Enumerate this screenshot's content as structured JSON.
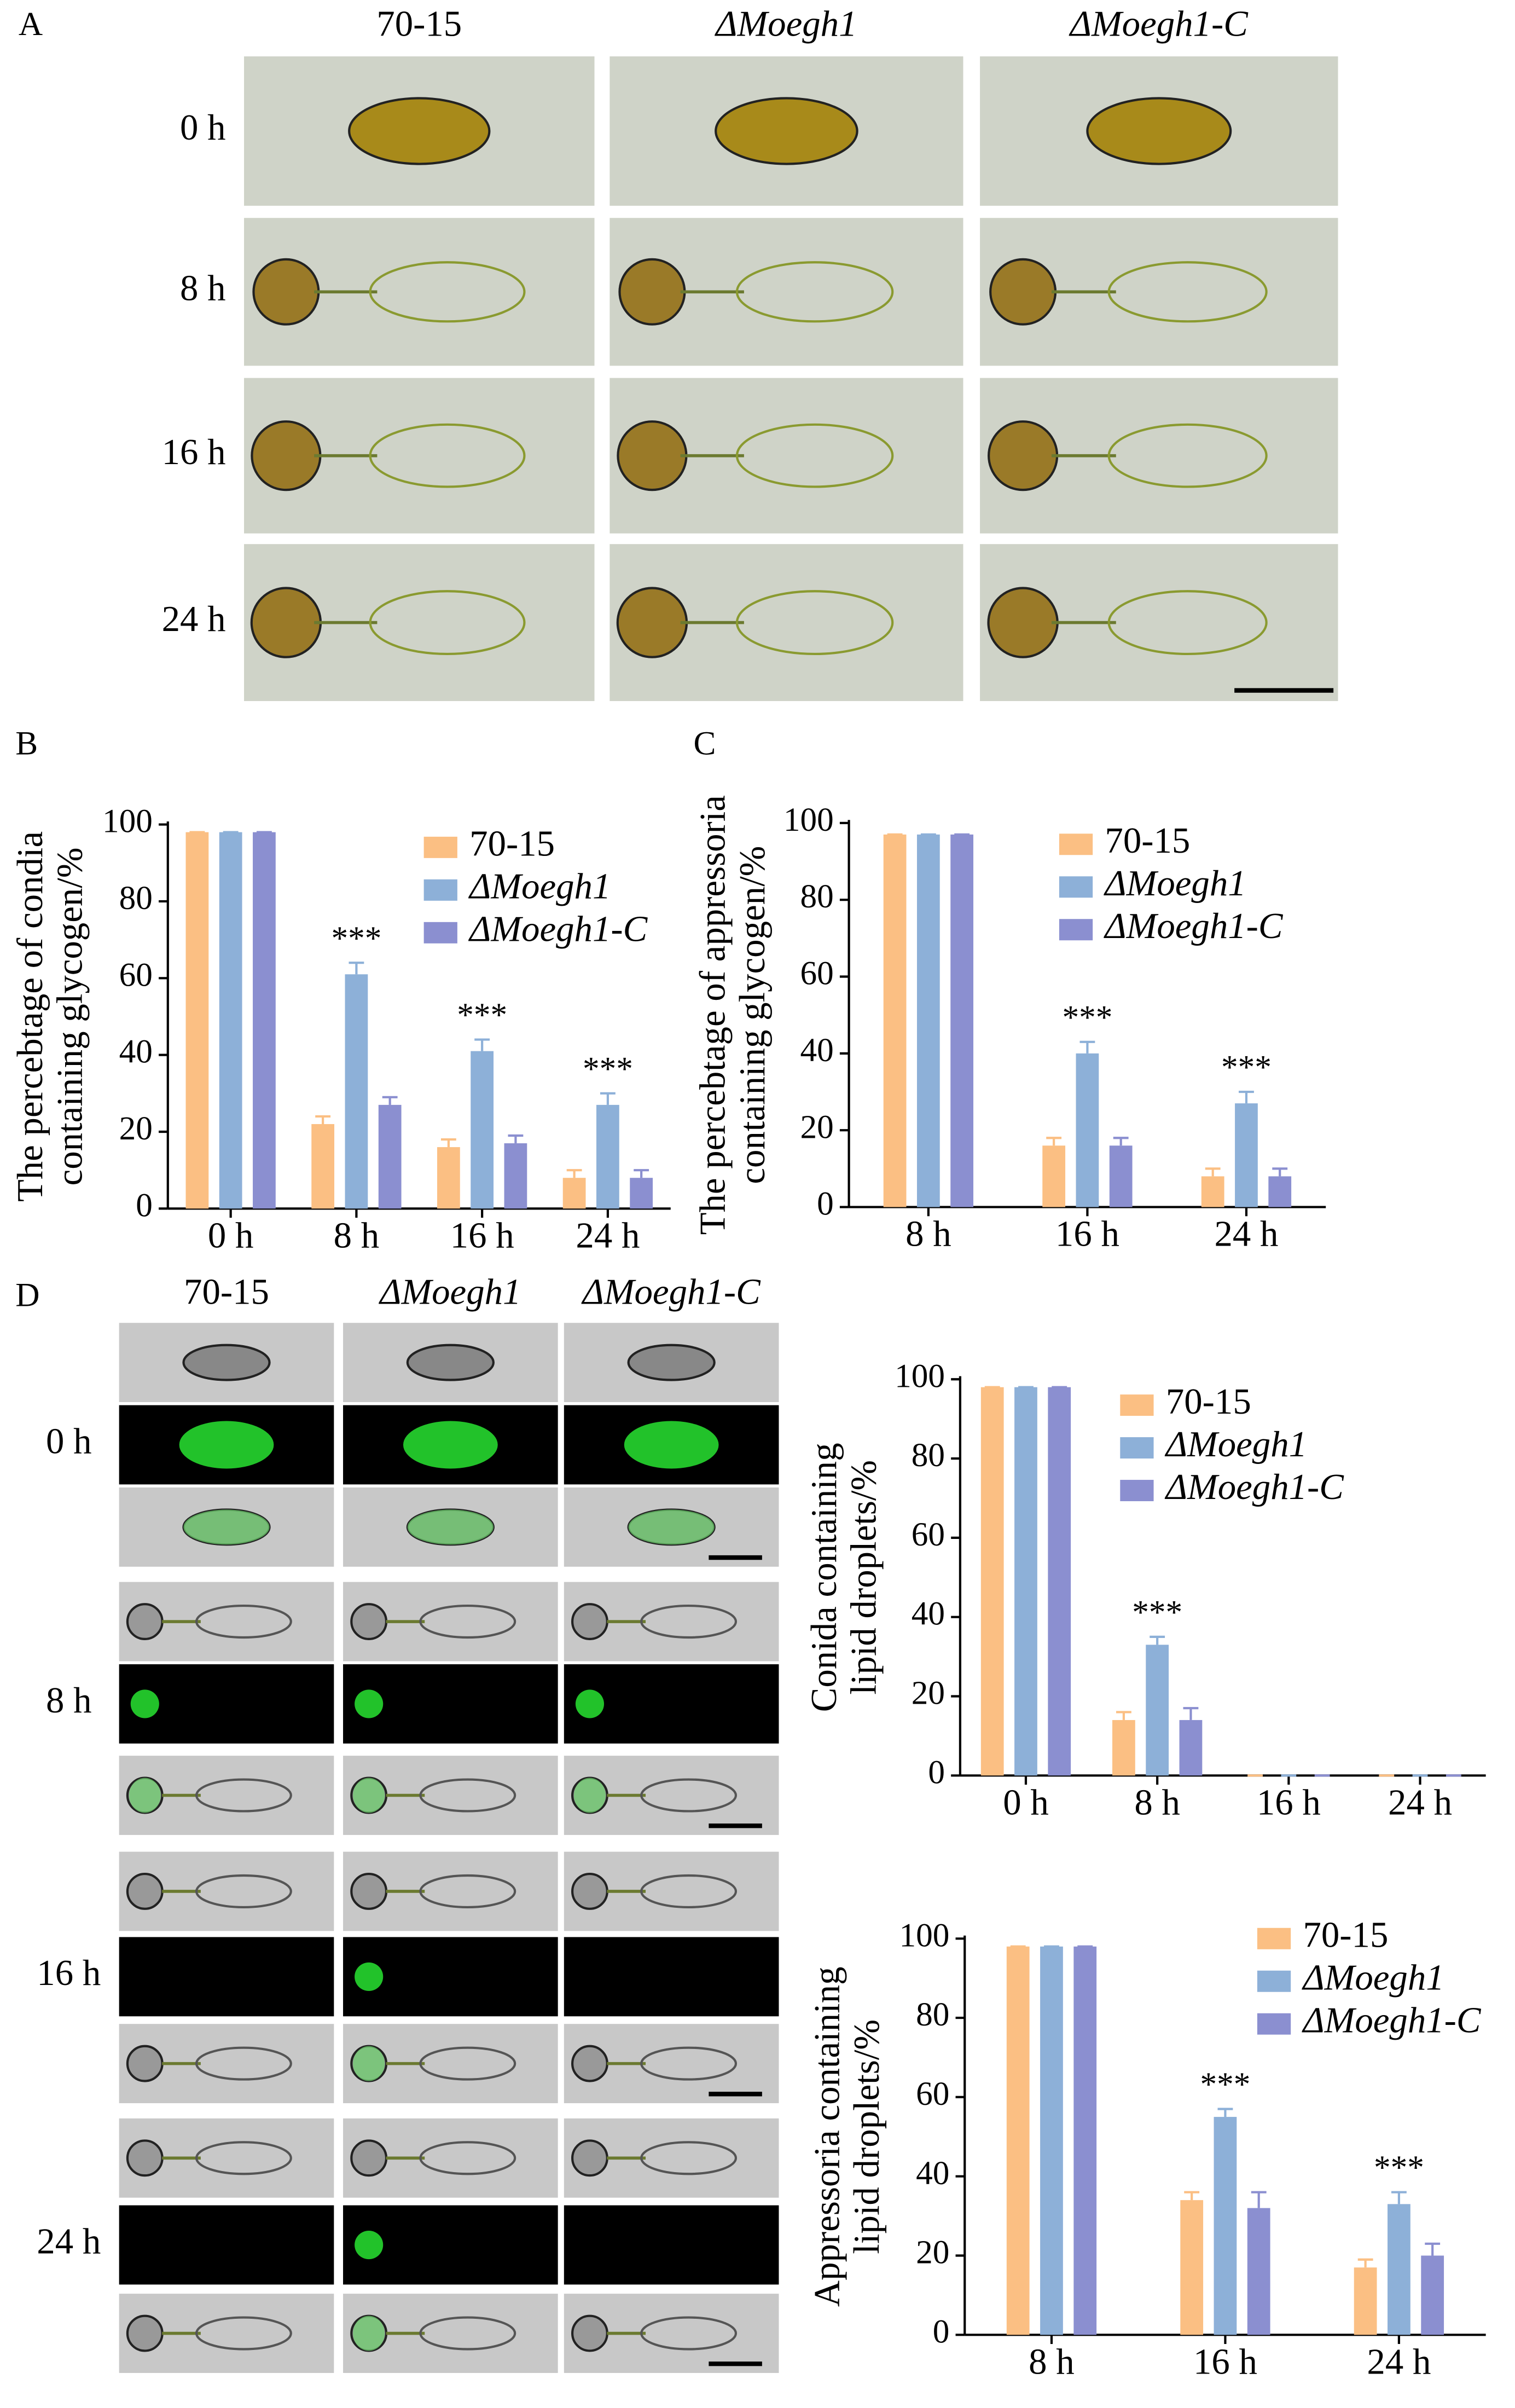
{
  "panel_a": {
    "label": "A",
    "columns": [
      "70-15",
      "ΔMoegh1",
      "ΔMoegh1-C"
    ],
    "rows": [
      "0 h",
      "8 h",
      "16 h",
      "24 h"
    ]
  },
  "panel_d": {
    "label": "D",
    "columns": [
      "70-15",
      "ΔMoegh1",
      "ΔMoegh1-C"
    ],
    "rows": [
      "0 h",
      "8 h",
      "16 h",
      "24 h"
    ]
  },
  "chart_data": [
    {
      "type": "bar",
      "label": "B",
      "ylabel": [
        "The percebtage of condia",
        "containing glycogen/%"
      ],
      "categories": [
        "0 h",
        "8 h",
        "16 h",
        "24 h"
      ],
      "series": [
        {
          "name": "70-15",
          "color": "#fbbf83",
          "values": [
            98,
            22,
            16,
            8
          ],
          "errors": [
            0,
            2,
            2,
            2
          ]
        },
        {
          "name": "ΔMoegh1",
          "color": "#8db0d8",
          "values": [
            98,
            61,
            41,
            27
          ],
          "errors": [
            0,
            3,
            3,
            3
          ]
        },
        {
          "name": "ΔMoegh1-C",
          "color": "#8b8fd0",
          "values": [
            98,
            27,
            17,
            8
          ],
          "errors": [
            0,
            2,
            2,
            2
          ]
        }
      ],
      "significance": [
        null,
        "***",
        "***",
        "***"
      ],
      "ylim": [
        0,
        100
      ],
      "yticks": [
        0,
        20,
        40,
        60,
        80,
        100
      ],
      "legend": "upper right"
    },
    {
      "type": "bar",
      "label": "C",
      "ylabel": [
        "The percebtage of appressoria",
        "containing glycogen/%"
      ],
      "categories": [
        "8 h",
        "16 h",
        "24 h"
      ],
      "series": [
        {
          "name": "70-15",
          "color": "#fbbf83",
          "values": [
            97,
            16,
            8
          ],
          "errors": [
            0,
            2,
            2
          ]
        },
        {
          "name": "ΔMoegh1",
          "color": "#8db0d8",
          "values": [
            97,
            40,
            27
          ],
          "errors": [
            0,
            3,
            3
          ]
        },
        {
          "name": "ΔMoegh1-C",
          "color": "#8b8fd0",
          "values": [
            97,
            16,
            8
          ],
          "errors": [
            0,
            2,
            2
          ]
        }
      ],
      "significance": [
        null,
        "***",
        "***"
      ],
      "ylim": [
        0,
        100
      ],
      "yticks": [
        0,
        20,
        40,
        60,
        80,
        100
      ],
      "legend": "upper right"
    },
    {
      "type": "bar",
      "ylabel": [
        "Conida containing",
        "lipid droplets/%"
      ],
      "categories": [
        "0 h",
        "8 h",
        "16 h",
        "24 h"
      ],
      "series": [
        {
          "name": "70-15",
          "color": "#fbbf83",
          "values": [
            98,
            14,
            0,
            0
          ],
          "errors": [
            0,
            2,
            0,
            0
          ]
        },
        {
          "name": "ΔMoegh1",
          "color": "#8db0d8",
          "values": [
            98,
            33,
            0,
            0
          ],
          "errors": [
            0,
            2,
            0,
            0
          ]
        },
        {
          "name": "ΔMoegh1-C",
          "color": "#8b8fd0",
          "values": [
            98,
            14,
            0,
            0
          ],
          "errors": [
            0,
            3,
            0,
            0
          ]
        }
      ],
      "significance": [
        null,
        "***",
        null,
        null
      ],
      "ylim": [
        0,
        100
      ],
      "yticks": [
        0,
        20,
        40,
        60,
        80,
        100
      ],
      "legend": "upper right"
    },
    {
      "type": "bar",
      "ylabel": [
        "Appressoria containing",
        "lipid droplets/%"
      ],
      "categories": [
        "8 h",
        "16 h",
        "24 h"
      ],
      "series": [
        {
          "name": "70-15",
          "color": "#fbbf83",
          "values": [
            98,
            34,
            17
          ],
          "errors": [
            0,
            2,
            2
          ]
        },
        {
          "name": "ΔMoegh1",
          "color": "#8db0d8",
          "values": [
            98,
            55,
            33
          ],
          "errors": [
            0,
            2,
            3
          ]
        },
        {
          "name": "ΔMoegh1-C",
          "color": "#8b8fd0",
          "values": [
            98,
            32,
            20
          ],
          "errors": [
            0,
            4,
            3
          ]
        }
      ],
      "significance": [
        null,
        "***",
        "***"
      ],
      "ylim": [
        0,
        100
      ],
      "yticks": [
        0,
        20,
        40,
        60,
        80,
        100
      ],
      "legend": "upper right"
    }
  ]
}
